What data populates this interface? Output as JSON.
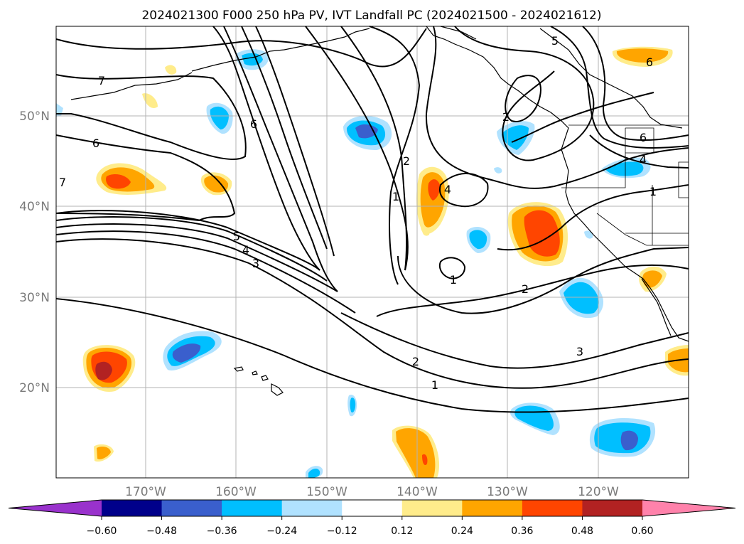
{
  "map": {
    "title": "2024021300 F000 250 hPa PV, IVT Landfall PC (2024021500 - 2024021612)",
    "lon_ticks": [
      "170°W",
      "160°W",
      "150°W",
      "140°W",
      "130°W",
      "120°W"
    ],
    "lat_ticks": [
      "20°N",
      "30°N",
      "40°N",
      "50°N"
    ],
    "pv_contour_labels": [
      "7",
      "6",
      "6",
      "7",
      "5",
      "4",
      "3",
      "2",
      "1",
      "4",
      "1",
      "2",
      "2",
      "1",
      "2",
      "3",
      "5",
      "6",
      "6",
      "4",
      "1"
    ],
    "colorbar": {
      "ticks": [
        "−0.60",
        "−0.48",
        "−0.36",
        "−0.24",
        "−0.12",
        "0.12",
        "0.24",
        "0.36",
        "0.48",
        "0.60"
      ],
      "colors": [
        "#9932cc",
        "#00008b",
        "#3a5fcd",
        "#00bfff",
        "#b0e2ff",
        "#ffffff",
        "#ffec8b",
        "#ffa500",
        "#ff4500",
        "#b22222",
        "#ff82ab"
      ]
    }
  }
}
